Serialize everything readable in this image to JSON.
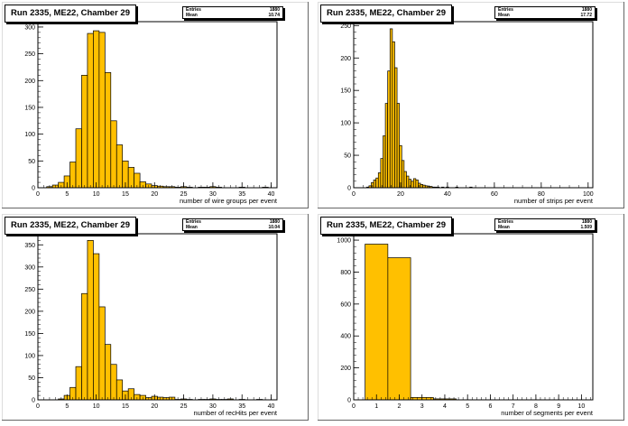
{
  "fill_color": "#ffc000",
  "chart_data": [
    {
      "type": "bar",
      "title": "Run 2335, ME22, Chamber 29",
      "stats": {
        "entries_label": "Entries",
        "entries": "1880",
        "mean_label": "Mean",
        "mean": "10.74"
      },
      "xlabel": "number of wire groups per event",
      "xlim": [
        0,
        41
      ],
      "ylim": [
        0,
        310
      ],
      "bin_width": 1,
      "xticks": [
        0,
        5,
        10,
        15,
        20,
        25,
        30,
        35,
        40
      ],
      "yticks": [
        0,
        50,
        100,
        150,
        200,
        250,
        300
      ],
      "x": [
        2,
        3,
        4,
        5,
        6,
        7,
        8,
        9,
        10,
        11,
        12,
        13,
        14,
        15,
        16,
        17,
        18,
        19,
        20,
        21,
        22,
        23,
        24,
        25,
        26,
        27,
        28,
        29,
        30,
        31,
        32,
        33,
        34,
        35,
        36,
        37,
        38,
        39
      ],
      "values": [
        2,
        5,
        10,
        22,
        48,
        110,
        210,
        288,
        293,
        290,
        215,
        125,
        80,
        50,
        38,
        27,
        11,
        7,
        4,
        3,
        2,
        2,
        1,
        2,
        1,
        0,
        1,
        1,
        2,
        1,
        0,
        0,
        0,
        1,
        0,
        0,
        0,
        1
      ]
    },
    {
      "type": "bar",
      "title": "Run 2335, ME22, Chamber 29",
      "stats": {
        "entries_label": "Entries",
        "entries": "1880",
        "mean_label": "Mean",
        "mean": "17.72"
      },
      "xlabel": "number of strips per event",
      "xlim": [
        0,
        102
      ],
      "ylim": [
        0,
        256
      ],
      "bin_width": 1,
      "xticks": [
        0,
        20,
        40,
        60,
        80,
        100
      ],
      "yticks": [
        0,
        50,
        100,
        150,
        200,
        250
      ],
      "x": [
        6,
        7,
        8,
        9,
        10,
        11,
        12,
        13,
        14,
        15,
        16,
        17,
        18,
        19,
        20,
        21,
        22,
        23,
        24,
        25,
        26,
        27,
        28,
        29,
        30,
        31,
        32,
        33,
        34,
        35,
        36,
        37,
        38,
        40,
        44,
        50
      ],
      "values": [
        1,
        3,
        8,
        12,
        15,
        23,
        45,
        80,
        130,
        180,
        245,
        225,
        185,
        130,
        65,
        42,
        25,
        18,
        13,
        10,
        14,
        12,
        7,
        5,
        4,
        3,
        2,
        2,
        1,
        1,
        1,
        0,
        1,
        1,
        1,
        1
      ]
    },
    {
      "type": "bar",
      "title": "Run 2335, ME22, Chamber 29",
      "stats": {
        "entries_label": "Entries",
        "entries": "1880",
        "mean_label": "Mean",
        "mean": "10.04"
      },
      "xlabel": "number of recHits per event",
      "xlim": [
        0,
        41
      ],
      "ylim": [
        0,
        375
      ],
      "bin_width": 1,
      "xticks": [
        0,
        5,
        10,
        15,
        20,
        25,
        30,
        35,
        40
      ],
      "yticks": [
        0,
        50,
        100,
        150,
        200,
        250,
        300,
        350
      ],
      "x": [
        4,
        5,
        6,
        7,
        8,
        9,
        10,
        11,
        12,
        13,
        14,
        15,
        16,
        17,
        18,
        19,
        20,
        21,
        22,
        23,
        24,
        25,
        26,
        27,
        28,
        29,
        30,
        31,
        32,
        33,
        34,
        35,
        36,
        37,
        38,
        39
      ],
      "values": [
        2,
        10,
        28,
        75,
        240,
        360,
        330,
        210,
        125,
        80,
        45,
        20,
        25,
        12,
        10,
        5,
        8,
        6,
        5,
        6,
        1,
        2,
        1,
        0,
        1,
        1,
        2,
        1,
        1,
        2,
        0,
        1,
        0,
        0,
        1,
        0
      ]
    },
    {
      "type": "bar",
      "title": "Run 2335, ME22, Chamber 29",
      "stats": {
        "entries_label": "Entries",
        "entries": "1880",
        "mean_label": "Mean",
        "mean": "1.509"
      },
      "xlabel": "number of segments per event",
      "xlim": [
        0,
        10.5
      ],
      "ylim": [
        0,
        1040
      ],
      "bin_width": 1,
      "xticks": [
        0,
        1,
        2,
        3,
        4,
        5,
        6,
        7,
        8,
        9,
        10
      ],
      "yticks": [
        0,
        200,
        400,
        600,
        800,
        1000
      ],
      "x": [
        1,
        2,
        3,
        4
      ],
      "values": [
        975,
        890,
        15,
        6
      ]
    }
  ]
}
